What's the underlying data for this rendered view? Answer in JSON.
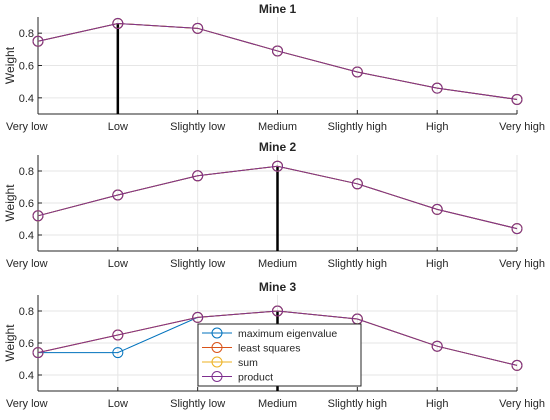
{
  "chart_data": [
    {
      "type": "line",
      "title": "Mine 1",
      "ylabel": "Weight",
      "xlabel": "",
      "categories": [
        "Very low",
        "Low",
        "Slightly low",
        "Medium",
        "Slightly high",
        "High",
        "Very high"
      ],
      "ylim": [
        0.3,
        0.9
      ],
      "yticks": [
        0.4,
        0.6,
        0.8
      ],
      "grid": true,
      "highlight_category": "Low",
      "series": [
        {
          "name": "maximum eigenvalue",
          "color": "#0072BD",
          "values": [
            0.75,
            0.86,
            0.83,
            0.69,
            0.56,
            0.46,
            0.39
          ]
        },
        {
          "name": "least squares",
          "color": "#D95319",
          "values": [
            0.75,
            0.86,
            0.83,
            0.69,
            0.56,
            0.46,
            0.39
          ]
        },
        {
          "name": "sum",
          "color": "#EDB120",
          "values": [
            0.75,
            0.86,
            0.83,
            0.69,
            0.56,
            0.46,
            0.39
          ]
        },
        {
          "name": "product",
          "color": "#7E2F8E",
          "values": [
            0.75,
            0.86,
            0.83,
            0.69,
            0.56,
            0.46,
            0.39
          ]
        }
      ]
    },
    {
      "type": "line",
      "title": "Mine 2",
      "ylabel": "Weight",
      "xlabel": "",
      "categories": [
        "Very low",
        "Low",
        "Slightly low",
        "Medium",
        "Slightly high",
        "High",
        "Very high"
      ],
      "ylim": [
        0.3,
        0.9
      ],
      "yticks": [
        0.4,
        0.6,
        0.8
      ],
      "grid": true,
      "highlight_category": "Medium",
      "series": [
        {
          "name": "maximum eigenvalue",
          "color": "#0072BD",
          "values": [
            0.52,
            0.65,
            0.77,
            0.83,
            0.72,
            0.56,
            0.44
          ]
        },
        {
          "name": "least squares",
          "color": "#D95319",
          "values": [
            0.52,
            0.65,
            0.77,
            0.83,
            0.72,
            0.56,
            0.44
          ]
        },
        {
          "name": "sum",
          "color": "#EDB120",
          "values": [
            0.52,
            0.65,
            0.77,
            0.83,
            0.72,
            0.56,
            0.44
          ]
        },
        {
          "name": "product",
          "color": "#7E2F8E",
          "values": [
            0.52,
            0.65,
            0.77,
            0.83,
            0.72,
            0.56,
            0.44
          ]
        }
      ]
    },
    {
      "type": "line",
      "title": "Mine 3",
      "ylabel": "Weight",
      "xlabel": "",
      "categories": [
        "Very low",
        "Low",
        "Slightly low",
        "Medium",
        "Slightly high",
        "High",
        "Very high"
      ],
      "ylim": [
        0.3,
        0.9
      ],
      "yticks": [
        0.4,
        0.6,
        0.8
      ],
      "grid": true,
      "highlight_category": "Medium",
      "legend_position": "bottom-center",
      "series": [
        {
          "name": "maximum eigenvalue",
          "color": "#0072BD",
          "values": [
            0.54,
            0.54,
            0.76,
            0.8,
            0.75,
            0.58,
            0.46
          ]
        },
        {
          "name": "least squares",
          "color": "#D95319",
          "values": [
            0.54,
            0.65,
            0.76,
            0.8,
            0.75,
            0.58,
            0.46
          ]
        },
        {
          "name": "sum",
          "color": "#EDB120",
          "values": [
            0.54,
            0.65,
            0.76,
            0.8,
            0.75,
            0.58,
            0.46
          ]
        },
        {
          "name": "product",
          "color": "#7E2F8E",
          "values": [
            0.54,
            0.65,
            0.76,
            0.8,
            0.75,
            0.58,
            0.46
          ]
        }
      ]
    }
  ]
}
